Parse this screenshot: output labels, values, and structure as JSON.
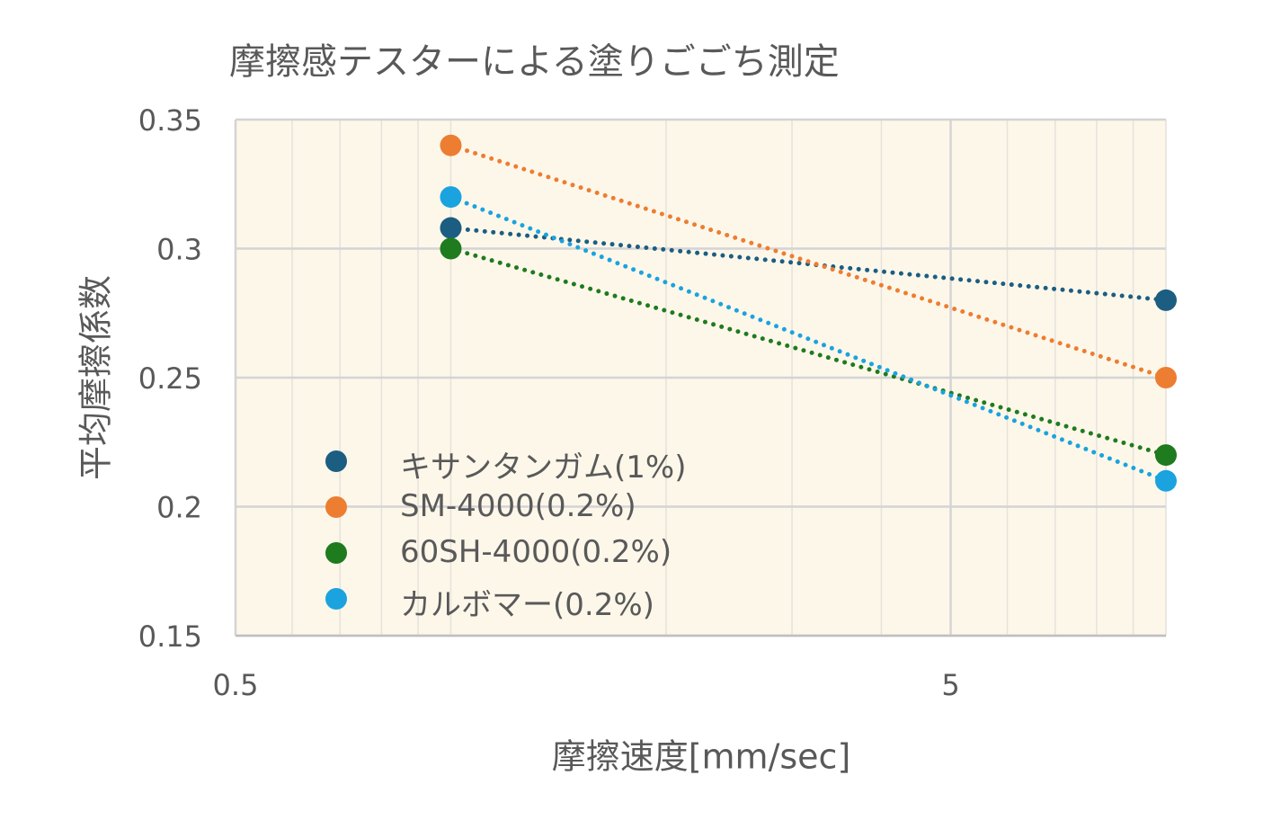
{
  "chart_data": {
    "type": "scatter",
    "title": "摩擦感テスターによる塗りごごち測定",
    "xlabel": "摩擦速度[mm/sec]",
    "ylabel": "平均摩擦係数",
    "xscale": "log",
    "xlim": [
      0.5,
      10
    ],
    "ylim": [
      0.15,
      0.35
    ],
    "x_ticks": [
      "0.5",
      "5"
    ],
    "y_ticks": [
      "0.35",
      "0.3",
      "0.25",
      "0.2",
      "0.15"
    ],
    "plot_background": "#fdf7ea",
    "grid": true,
    "legend_position": "lower-left inside plot",
    "series": [
      {
        "name": "キサンタンガム(1%)",
        "color": "#1b5e82",
        "x": [
          1,
          10
        ],
        "y": [
          0.308,
          0.28
        ]
      },
      {
        "name": "SM-4000(0.2%)",
        "color": "#ed7d31",
        "x": [
          1,
          10
        ],
        "y": [
          0.34,
          0.25
        ]
      },
      {
        "name": "60SH-4000(0.2%)",
        "color": "#1e7b1e",
        "x": [
          1,
          10
        ],
        "y": [
          0.3,
          0.22
        ]
      },
      {
        "name": "カルボマー(0.2%)",
        "color": "#1aa3de",
        "x": [
          1,
          10
        ],
        "y": [
          0.32,
          0.21
        ]
      }
    ]
  }
}
